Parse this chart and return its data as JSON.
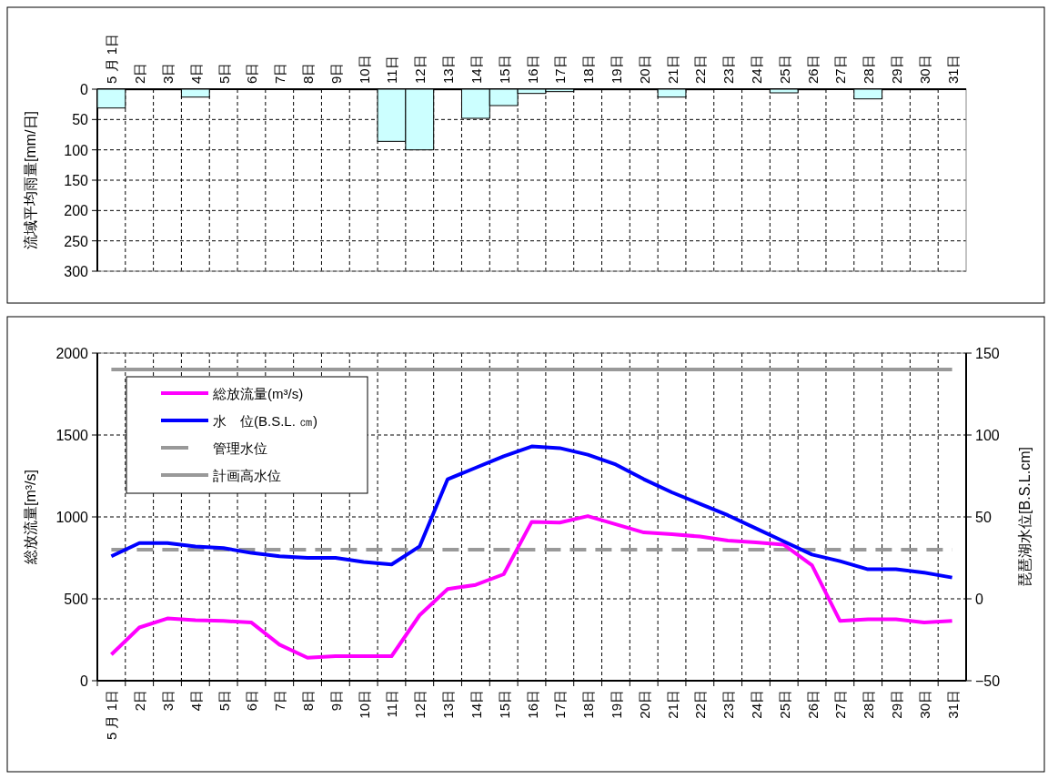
{
  "chart_data": [
    {
      "type": "bar",
      "categories": [
        "5 月 1日",
        "2日",
        "3日",
        "4日",
        "5日",
        "6日",
        "7日",
        "8日",
        "9日",
        "10日",
        "11日",
        "12日",
        "13日",
        "14日",
        "15日",
        "16日",
        "17日",
        "18日",
        "19日",
        "20日",
        "21日",
        "22日",
        "23日",
        "24日",
        "25日",
        "26日",
        "27日",
        "28日",
        "29日",
        "30日",
        "31日"
      ],
      "values": [
        31,
        1,
        1,
        13,
        0,
        0,
        0,
        1,
        0,
        1,
        86,
        100,
        1,
        48,
        27,
        7,
        4,
        1,
        1,
        1,
        13,
        1,
        0,
        0,
        6,
        1,
        0,
        16,
        1,
        1,
        0
      ],
      "color": "#ccffff",
      "ylim": [
        300,
        0
      ],
      "yticks": [
        0,
        50,
        100,
        150,
        200,
        250,
        300
      ],
      "ylabel": "流域平均雨量[mm/日]",
      "grid": true
    },
    {
      "type": "line",
      "categories": [
        "5 月 1日",
        "2日",
        "3日",
        "4日",
        "5日",
        "6日",
        "7日",
        "8日",
        "9日",
        "10日",
        "11日",
        "12日",
        "13日",
        "14日",
        "15日",
        "16日",
        "17日",
        "18日",
        "19日",
        "20日",
        "21日",
        "22日",
        "23日",
        "24日",
        "25日",
        "26日",
        "27日",
        "28日",
        "29日",
        "30日",
        "31日"
      ],
      "series": [
        {
          "name": "総放流量(m³/s)",
          "color": "#ff00ff",
          "values": [
            160,
            325,
            380,
            370,
            365,
            355,
            220,
            140,
            150,
            150,
            150,
            400,
            560,
            585,
            650,
            970,
            965,
            1005,
            955,
            905,
            895,
            880,
            855,
            845,
            830,
            705,
            365,
            375,
            375,
            355,
            365
          ]
        },
        {
          "name": "水　位(B.S.L. ㎝)",
          "color": "#0000ff",
          "axis": "y2",
          "values": [
            26,
            34,
            34,
            32,
            31,
            28,
            26,
            25,
            25,
            22.5,
            21,
            32,
            73,
            80,
            87,
            93,
            92,
            88,
            82,
            73,
            65,
            58,
            51,
            43,
            35,
            27,
            23,
            18,
            18,
            16,
            13
          ]
        }
      ],
      "ylim": [
        0,
        2000
      ],
      "yticks": [
        0,
        500,
        1000,
        1500,
        2000
      ],
      "y2lim": [
        -50,
        150
      ],
      "y2ticks": [
        {
          "value": -50,
          "label": "−50"
        },
        0,
        50,
        100,
        150
      ],
      "ylabel": "総放流量[m³/s]",
      "y2label": "琵琶湖水位[B.S.L.cm]",
      "ref_lines": [
        {
          "axis": "y2",
          "value": 30,
          "label": "管理水位",
          "color": "#999999",
          "line_style": "dashed"
        },
        {
          "axis": "y2",
          "value": 140,
          "label": "計画高水位",
          "color": "#999999",
          "line_style": "solid"
        }
      ],
      "legend": "top left",
      "grid": true
    }
  ]
}
